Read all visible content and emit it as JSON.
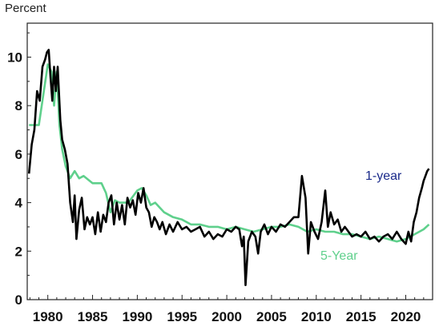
{
  "chart_data": {
    "type": "line",
    "ylabel": "Percent",
    "ylim": [
      0,
      11.4
    ],
    "xlim": [
      1977.7,
      2023.0
    ],
    "yticks": [
      "0",
      "2",
      "4",
      "6",
      "8",
      "10"
    ],
    "xticks": [
      "1980",
      "1985",
      "1990",
      "1995",
      "2000",
      "2005",
      "2010",
      "2015",
      "2020"
    ],
    "grid": false,
    "legend": "inline labels",
    "colors": {
      "one_year": "#000000",
      "five_year": "#5fd08c",
      "one_year_label": "#1a2a8a"
    },
    "series": [
      {
        "name": "1-year",
        "x": [
          1977.9,
          1978.2,
          1978.5,
          1978.8,
          1979.1,
          1979.4,
          1979.7,
          1979.9,
          1980.1,
          1980.3,
          1980.5,
          1980.7,
          1980.9,
          1981.1,
          1981.4,
          1981.6,
          1981.9,
          1982.2,
          1982.5,
          1982.8,
          1983.0,
          1983.2,
          1983.5,
          1983.8,
          1984.1,
          1984.4,
          1984.7,
          1985.0,
          1985.3,
          1985.6,
          1985.9,
          1986.2,
          1986.5,
          1986.8,
          1987.1,
          1987.4,
          1987.7,
          1988.0,
          1988.3,
          1988.6,
          1988.9,
          1989.2,
          1989.5,
          1989.8,
          1990.1,
          1990.4,
          1990.7,
          1991.0,
          1991.3,
          1991.6,
          1991.9,
          1992.2,
          1992.5,
          1992.8,
          1993.2,
          1993.6,
          1994.0,
          1994.5,
          1995.0,
          1995.5,
          1996.0,
          1996.5,
          1997.0,
          1997.5,
          1998.0,
          1998.5,
          1999.0,
          1999.5,
          2000.0,
          2000.5,
          2001.0,
          2001.4,
          2001.7,
          2001.9,
          2002.1,
          2002.4,
          2002.8,
          2003.2,
          2003.5,
          2003.8,
          2004.2,
          2004.6,
          2005.0,
          2005.5,
          2006.0,
          2006.5,
          2007.0,
          2007.5,
          2008.0,
          2008.4,
          2008.8,
          2009.1,
          2009.4,
          2009.8,
          2010.2,
          2010.6,
          2011.0,
          2011.3,
          2011.6,
          2012.0,
          2012.4,
          2012.8,
          2013.2,
          2013.6,
          2014.0,
          2014.5,
          2015.0,
          2015.5,
          2016.0,
          2016.5,
          2017.0,
          2017.5,
          2018.0,
          2018.5,
          2019.0,
          2019.5,
          2020.0,
          2020.3,
          2020.6,
          2020.9,
          2021.2,
          2021.5,
          2021.8,
          2022.0,
          2022.2,
          2022.4,
          2022.6
        ],
        "values": [
          5.2,
          6.4,
          7.0,
          8.6,
          8.2,
          9.6,
          9.9,
          10.2,
          10.3,
          9.2,
          8.2,
          9.6,
          8.6,
          9.6,
          7.4,
          6.6,
          6.2,
          5.6,
          4.0,
          3.2,
          4.3,
          2.5,
          3.7,
          4.2,
          2.9,
          3.4,
          3.1,
          3.4,
          2.7,
          3.6,
          2.8,
          3.5,
          3.2,
          4.0,
          4.3,
          3.1,
          4.0,
          3.3,
          3.9,
          3.1,
          4.2,
          3.8,
          4.1,
          3.5,
          4.4,
          4.0,
          4.6,
          3.8,
          3.6,
          3.0,
          3.4,
          3.2,
          2.9,
          3.2,
          2.7,
          3.1,
          2.8,
          3.2,
          2.9,
          3.0,
          2.8,
          2.9,
          3.0,
          2.6,
          2.8,
          2.5,
          2.7,
          2.6,
          2.9,
          2.8,
          3.0,
          2.9,
          2.2,
          2.6,
          0.6,
          2.4,
          2.8,
          2.6,
          1.9,
          2.8,
          3.1,
          2.7,
          3.0,
          2.8,
          3.1,
          3.0,
          3.2,
          3.4,
          3.4,
          5.1,
          4.2,
          1.9,
          3.2,
          2.8,
          2.5,
          3.2,
          4.5,
          3.0,
          3.6,
          3.1,
          3.3,
          2.8,
          3.0,
          2.8,
          2.6,
          2.7,
          2.6,
          2.8,
          2.5,
          2.6,
          2.4,
          2.6,
          2.7,
          2.5,
          2.8,
          2.5,
          2.3,
          2.8,
          2.4,
          3.2,
          3.6,
          4.2,
          4.6,
          4.9,
          5.1,
          5.3,
          5.4
        ]
      },
      {
        "name": "5-Year",
        "x": [
          1977.9,
          1979.0,
          1979.0,
          1980.0,
          1980.4,
          1980.7,
          1981.0,
          1981.3,
          1981.6,
          1982.0,
          1982.5,
          1983.0,
          1983.5,
          1984.0,
          1985.0,
          1986.0,
          1986.5,
          1987.0,
          1987.5,
          1988.0,
          1989.0,
          1990.0,
          1990.5,
          1991.0,
          1991.5,
          1992.0,
          1993.0,
          1994.0,
          1995.0,
          1996.0,
          1997.0,
          1998.0,
          1999.0,
          2000.0,
          2001.0,
          2002.0,
          2003.0,
          2004.0,
          2005.0,
          2006.0,
          2007.0,
          2008.0,
          2009.0,
          2010.0,
          2011.0,
          2012.0,
          2013.0,
          2014.0,
          2015.0,
          2016.0,
          2017.0,
          2018.0,
          2019.0,
          2020.0,
          2021.0,
          2022.0,
          2022.6
        ],
        "values": [
          7.2,
          7.2,
          7.2,
          9.7,
          9.4,
          8.0,
          9.4,
          7.2,
          6.2,
          5.5,
          5.0,
          5.3,
          5.0,
          5.1,
          4.8,
          4.8,
          4.4,
          3.6,
          4.1,
          4.0,
          4.0,
          4.5,
          4.6,
          4.3,
          3.9,
          4.0,
          3.6,
          3.4,
          3.3,
          3.1,
          3.1,
          3.0,
          3.0,
          2.9,
          3.0,
          2.9,
          2.8,
          2.9,
          3.0,
          3.0,
          3.1,
          3.0,
          2.8,
          2.9,
          2.8,
          2.8,
          2.7,
          2.7,
          2.6,
          2.5,
          2.6,
          2.5,
          2.4,
          2.5,
          2.7,
          2.9,
          3.1
        ]
      }
    ]
  }
}
